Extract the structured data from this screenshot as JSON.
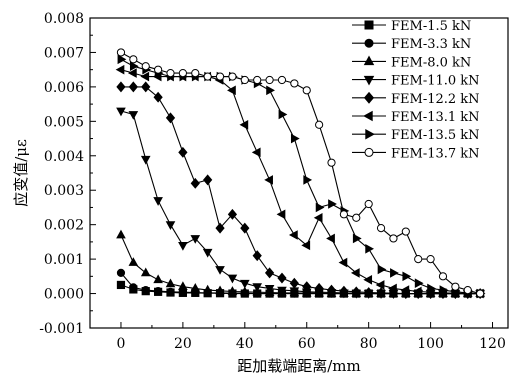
{
  "chart_data": {
    "type": "line",
    "xlabel": "距加载端距离/mm",
    "ylabel": "应变值/με",
    "xlim": [
      -10,
      125
    ],
    "ylim": [
      -0.001,
      0.008
    ],
    "xticks": [
      0,
      20,
      40,
      60,
      80,
      100,
      120
    ],
    "yticks": [
      -0.001,
      0.0,
      0.001,
      0.002,
      0.003,
      0.004,
      0.005,
      0.006,
      0.007,
      0.008
    ],
    "ytick_labels": [
      "-0.001",
      "0.000",
      "0.001",
      "0.002",
      "0.003",
      "0.004",
      "0.005",
      "0.006",
      "0.007",
      "0.008"
    ],
    "grid": false,
    "legend_position": "top-right",
    "series": [
      {
        "name": "FEM-1.5 kN",
        "marker": "square",
        "x": [
          0,
          4,
          8,
          12,
          16,
          20,
          24,
          28,
          32,
          36,
          40,
          44,
          48,
          52,
          56,
          60,
          64,
          68,
          72,
          76,
          80,
          84,
          88,
          92,
          96,
          100,
          104,
          108,
          112,
          116
        ],
        "y": [
          0.00025,
          0.00012,
          7e-05,
          5e-05,
          3e-05,
          2e-05,
          2e-05,
          1e-05,
          1e-05,
          0,
          0,
          0,
          0,
          0,
          0,
          0,
          0,
          0,
          0,
          0,
          0,
          0,
          0,
          0,
          0,
          0,
          0,
          0,
          0,
          0
        ]
      },
      {
        "name": "FEM-3.3 kN",
        "marker": "circle",
        "x": [
          0,
          4,
          8,
          12,
          16,
          20,
          24,
          28,
          32,
          36,
          40,
          44,
          48,
          52,
          56,
          60,
          64,
          68,
          72,
          76,
          80,
          84,
          88,
          92,
          96,
          100,
          104,
          108,
          112,
          116
        ],
        "y": [
          0.0006,
          0.00018,
          0.0001,
          7e-05,
          5e-05,
          4e-05,
          3e-05,
          2e-05,
          2e-05,
          1e-05,
          1e-05,
          0,
          0,
          0,
          0,
          0,
          0,
          0,
          0,
          0,
          0,
          0,
          0,
          0,
          0,
          0,
          0,
          0,
          0,
          0
        ]
      },
      {
        "name": "FEM-8.0 kN",
        "marker": "triangle-up",
        "x": [
          0,
          4,
          8,
          12,
          16,
          20,
          24,
          28,
          32,
          36,
          40,
          44,
          48,
          52,
          56,
          60,
          64,
          68,
          72,
          76,
          80,
          84,
          88,
          92,
          96,
          100,
          104,
          108,
          112,
          116
        ],
        "y": [
          0.0017,
          0.0009,
          0.0006,
          0.0004,
          0.00028,
          0.0002,
          0.00015,
          0.0001,
          8e-05,
          6e-05,
          5e-05,
          4e-05,
          3e-05,
          2e-05,
          2e-05,
          1e-05,
          1e-05,
          0,
          0,
          0,
          0,
          0,
          0,
          0,
          0,
          0,
          0,
          0,
          0,
          0
        ]
      },
      {
        "name": "FEM-11.0 kN",
        "marker": "triangle-down",
        "x": [
          0,
          4,
          8,
          12,
          16,
          20,
          24,
          28,
          32,
          36,
          40,
          44,
          48,
          52,
          56,
          60,
          64,
          68,
          72,
          76,
          80,
          84,
          88,
          92,
          96,
          100,
          104,
          108,
          112,
          116
        ],
        "y": [
          0.0053,
          0.0052,
          0.0039,
          0.0027,
          0.002,
          0.0014,
          0.0016,
          0.0012,
          0.0007,
          0.00045,
          0.0003,
          0.0002,
          0.00015,
          0.0001,
          8e-05,
          5e-05,
          4e-05,
          3e-05,
          2e-05,
          1e-05,
          0,
          0,
          0,
          0,
          0,
          0,
          0,
          0,
          0,
          0
        ]
      },
      {
        "name": "FEM-12.2 kN",
        "marker": "diamond",
        "x": [
          0,
          4,
          8,
          12,
          16,
          20,
          24,
          28,
          32,
          36,
          40,
          44,
          48,
          52,
          56,
          60,
          64,
          68,
          72,
          76,
          80,
          84,
          88,
          92,
          96,
          100,
          104,
          108,
          112,
          116
        ],
        "y": [
          0.006,
          0.006,
          0.006,
          0.0057,
          0.0051,
          0.0041,
          0.0032,
          0.0033,
          0.0019,
          0.0023,
          0.0019,
          0.0011,
          0.0006,
          0.00045,
          0.0003,
          0.0002,
          0.00015,
          0.0001,
          7e-05,
          5e-05,
          3e-05,
          2e-05,
          1e-05,
          0,
          0,
          0,
          0,
          0,
          0,
          0
        ]
      },
      {
        "name": "FEM-13.1 kN",
        "marker": "triangle-left",
        "x": [
          0,
          4,
          8,
          12,
          16,
          20,
          24,
          28,
          32,
          36,
          40,
          44,
          48,
          52,
          56,
          60,
          64,
          68,
          72,
          76,
          80,
          84,
          88,
          92,
          96,
          100,
          104,
          108,
          112,
          116
        ],
        "y": [
          0.0065,
          0.0064,
          0.0063,
          0.0063,
          0.0063,
          0.0063,
          0.0063,
          0.0063,
          0.0062,
          0.0059,
          0.0049,
          0.0041,
          0.0033,
          0.0023,
          0.0017,
          0.0014,
          0.0022,
          0.0016,
          0.0009,
          0.0006,
          0.0004,
          0.00025,
          0.00015,
          0.0001,
          6e-05,
          4e-05,
          2e-05,
          1e-05,
          0,
          0
        ]
      },
      {
        "name": "FEM-13.5 kN",
        "marker": "triangle-right",
        "x": [
          0,
          4,
          8,
          12,
          16,
          20,
          24,
          28,
          32,
          36,
          40,
          44,
          48,
          52,
          56,
          60,
          64,
          68,
          72,
          76,
          80,
          84,
          88,
          92,
          96,
          100,
          104,
          108,
          112,
          116
        ],
        "y": [
          0.0068,
          0.0066,
          0.0065,
          0.0064,
          0.0063,
          0.0063,
          0.0063,
          0.0063,
          0.0063,
          0.0063,
          0.0062,
          0.0061,
          0.0059,
          0.0052,
          0.0045,
          0.0033,
          0.0025,
          0.0026,
          0.0024,
          0.0016,
          0.0013,
          0.0007,
          0.0006,
          0.0005,
          0.0003,
          0.00015,
          0.0001,
          5e-05,
          2e-05,
          0
        ]
      },
      {
        "name": "FEM-13.7 kN",
        "marker": "circle-open",
        "x": [
          0,
          4,
          8,
          12,
          16,
          20,
          24,
          28,
          32,
          36,
          40,
          44,
          48,
          52,
          56,
          60,
          64,
          68,
          72,
          76,
          80,
          84,
          88,
          92,
          96,
          100,
          104,
          108,
          112,
          116
        ],
        "y": [
          0.007,
          0.0068,
          0.0066,
          0.0065,
          0.0064,
          0.0064,
          0.0064,
          0.0063,
          0.0063,
          0.0063,
          0.0062,
          0.0062,
          0.0062,
          0.0062,
          0.0061,
          0.0059,
          0.0049,
          0.0038,
          0.0023,
          0.0022,
          0.0026,
          0.0019,
          0.0016,
          0.0018,
          0.001,
          0.001,
          0.0005,
          0.0002,
          0.0001,
          0
        ]
      }
    ]
  }
}
